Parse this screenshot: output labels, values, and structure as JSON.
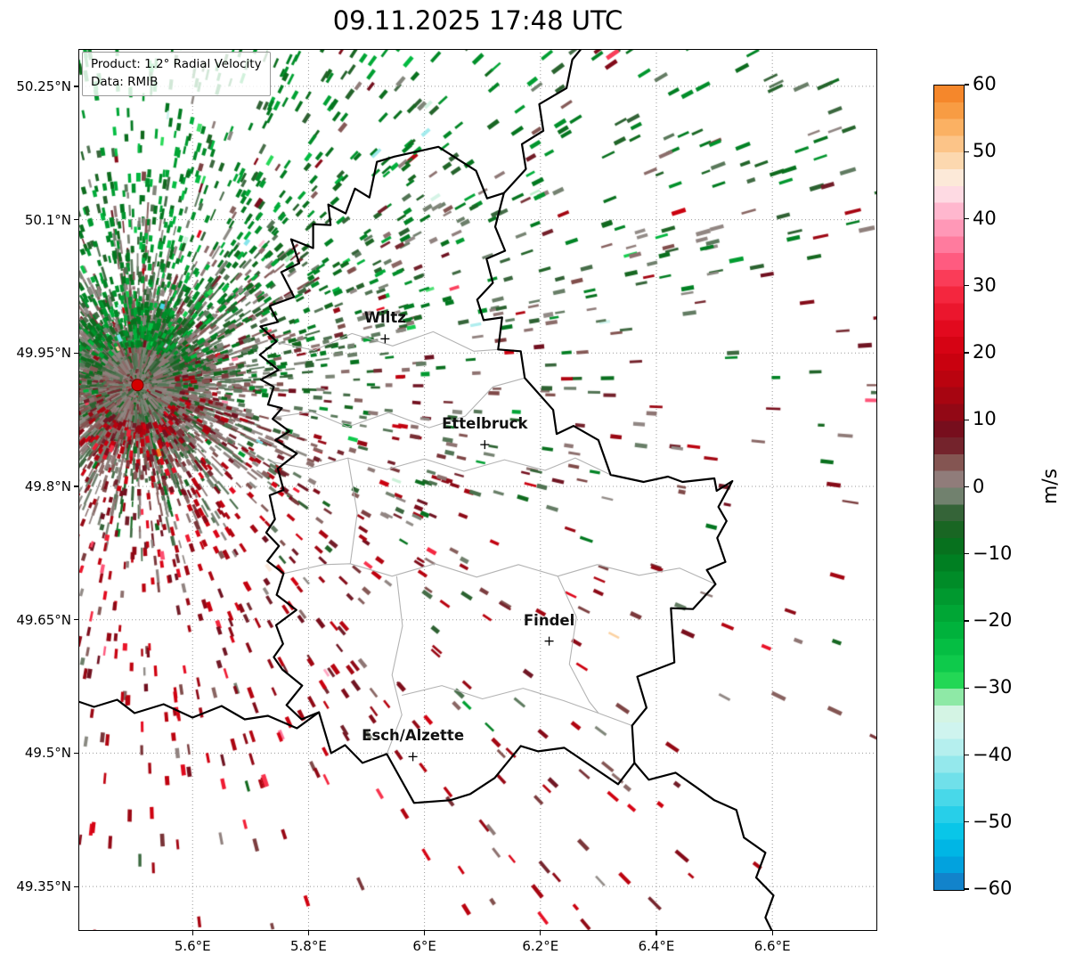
{
  "chart_data": {
    "type": "scatter",
    "title": "09.11.2025 17:48 UTC",
    "projection": "PlateCarree",
    "xlabel": "",
    "ylabel": "",
    "xlim": [
      5.403,
      6.781
    ],
    "ylim": [
      49.3,
      50.292
    ],
    "grid": true,
    "x_ticks": [
      {
        "v": 5.6,
        "label": "5.6°E"
      },
      {
        "v": 5.8,
        "label": "5.8°E"
      },
      {
        "v": 6.0,
        "label": "6°E"
      },
      {
        "v": 6.2,
        "label": "6.2°E"
      },
      {
        "v": 6.4,
        "label": "6.4°E"
      },
      {
        "v": 6.6,
        "label": "6.6°E"
      }
    ],
    "y_ticks": [
      {
        "v": 50.25,
        "label": "50.25°N"
      },
      {
        "v": 50.1,
        "label": "50.1°N"
      },
      {
        "v": 49.95,
        "label": "49.95°N"
      },
      {
        "v": 49.8,
        "label": "49.8°N"
      },
      {
        "v": 49.65,
        "label": "49.65°N"
      },
      {
        "v": 49.5,
        "label": "49.5°N"
      },
      {
        "v": 49.35,
        "label": "49.35°N"
      }
    ],
    "legend": {
      "product": "Product: 1.2° Radial Velocity",
      "source": "Data: RMIB"
    },
    "colorbar": {
      "label": "m/s",
      "min": -60,
      "max": 60,
      "step_band": 2.5,
      "ticks": [
        {
          "v": 60,
          "label": "60"
        },
        {
          "v": 50,
          "label": "50"
        },
        {
          "v": 40,
          "label": "40"
        },
        {
          "v": 30,
          "label": "30"
        },
        {
          "v": 20,
          "label": "20"
        },
        {
          "v": 10,
          "label": "10"
        },
        {
          "v": 0,
          "label": "0"
        },
        {
          "v": -10,
          "label": "−10"
        },
        {
          "v": -20,
          "label": "−20"
        },
        {
          "v": -30,
          "label": "−30"
        },
        {
          "v": -40,
          "label": "−40"
        },
        {
          "v": -50,
          "label": "−50"
        },
        {
          "v": -60,
          "label": "−60"
        }
      ],
      "stops": [
        [
          -60,
          "#1a73c2"
        ],
        [
          -56,
          "#00a5e0"
        ],
        [
          -52,
          "#00c3e8"
        ],
        [
          -47,
          "#3cd5e9"
        ],
        [
          -43,
          "#7ce3ea"
        ],
        [
          -39,
          "#b2eeee"
        ],
        [
          -35,
          "#dcf6f0"
        ],
        [
          -32,
          "#c8f0d4"
        ],
        [
          -30,
          "#2edd5a"
        ],
        [
          -26,
          "#0cc94a"
        ],
        [
          -22,
          "#00b63e"
        ],
        [
          -18,
          "#00a233"
        ],
        [
          -14,
          "#008d29"
        ],
        [
          -10,
          "#00781f"
        ],
        [
          -7,
          "#11681d"
        ],
        [
          -4,
          "#2f6133"
        ],
        [
          -2,
          "#5d7a5e"
        ],
        [
          0,
          "#928c88"
        ],
        [
          2,
          "#8e7371"
        ],
        [
          4,
          "#82514e"
        ],
        [
          6,
          "#75262e"
        ],
        [
          8,
          "#6e1120"
        ],
        [
          10,
          "#870a17"
        ],
        [
          13,
          "#a10612"
        ],
        [
          16,
          "#b9030f"
        ],
        [
          20,
          "#d0000f"
        ],
        [
          24,
          "#e30a1f"
        ],
        [
          28,
          "#f22037"
        ],
        [
          31,
          "#fa3954"
        ],
        [
          34,
          "#ff5e84"
        ],
        [
          37,
          "#ff84a7"
        ],
        [
          40,
          "#ffa7c3"
        ],
        [
          43,
          "#ffcedd"
        ],
        [
          45,
          "#fcedec"
        ],
        [
          47,
          "#fce6cc"
        ],
        [
          50,
          "#fcce9b"
        ],
        [
          53,
          "#fcb76d"
        ],
        [
          56,
          "#f89e45"
        ],
        [
          60,
          "#f47d1f"
        ]
      ]
    },
    "cities": [
      {
        "name": "Wiltz",
        "lon": 5.932,
        "lat": 49.966
      },
      {
        "name": "Ettelbruck",
        "lon": 6.104,
        "lat": 49.847
      },
      {
        "name": "Findel",
        "lon": 6.215,
        "lat": 49.626
      },
      {
        "name": "Esch/Alzette",
        "lon": 5.98,
        "lat": 49.496
      }
    ],
    "radar_site": {
      "lon": 5.505,
      "lat": 49.914,
      "color": "#d40000",
      "edge": "#7a0000"
    },
    "field_model": {
      "seed": 42,
      "description": "1.2° PPI radial-velocity bins around the radar site: negative velocities (greens, toward radar) dominate the northern sectors, positive velocities (dark reds, away) the southern sectors, with a dense near-zero (gray) ground-clutter disc and radial spokes at the radar, thinning with range",
      "mean_radial_wind_ms": 13.5,
      "noise_sigma_ms": 6.5,
      "clutter_count": 6000,
      "spoke_count": 300,
      "field_count": 7000,
      "far_count": 260
    }
  },
  "map_layers": {
    "grid_color": "#9a9a9a",
    "country_border_color": "#000000",
    "region_border_color": "#b3b3b3",
    "country_borders": {
      "luxembourg": [
        [
          5.948,
          50.171
        ],
        [
          6.024,
          50.182
        ],
        [
          6.089,
          50.155
        ],
        [
          6.108,
          50.124
        ],
        [
          6.137,
          50.13
        ],
        [
          6.122,
          50.092
        ],
        [
          6.139,
          50.065
        ],
        [
          6.107,
          50.056
        ],
        [
          6.118,
          50.029
        ],
        [
          6.091,
          50.01
        ],
        [
          6.102,
          49.987
        ],
        [
          6.134,
          49.99
        ],
        [
          6.127,
          49.954
        ],
        [
          6.166,
          49.952
        ],
        [
          6.173,
          49.922
        ],
        [
          6.222,
          49.886
        ],
        [
          6.228,
          49.859
        ],
        [
          6.257,
          49.868
        ],
        [
          6.3,
          49.852
        ],
        [
          6.321,
          49.813
        ],
        [
          6.378,
          49.805
        ],
        [
          6.42,
          49.811
        ],
        [
          6.445,
          49.805
        ],
        [
          6.5,
          49.809
        ],
        [
          6.504,
          49.795
        ],
        [
          6.531,
          49.806
        ],
        [
          6.507,
          49.777
        ],
        [
          6.521,
          49.761
        ],
        [
          6.505,
          49.742
        ],
        [
          6.519,
          49.715
        ],
        [
          6.487,
          49.706
        ],
        [
          6.502,
          49.69
        ],
        [
          6.463,
          49.662
        ],
        [
          6.425,
          49.663
        ],
        [
          6.431,
          49.602
        ],
        [
          6.367,
          49.586
        ],
        [
          6.383,
          49.551
        ],
        [
          6.358,
          49.531
        ],
        [
          6.362,
          49.489
        ],
        [
          6.334,
          49.465
        ],
        [
          6.241,
          49.506
        ],
        [
          6.196,
          49.502
        ],
        [
          6.166,
          49.508
        ],
        [
          6.121,
          49.472
        ],
        [
          6.079,
          49.454
        ],
        [
          6.044,
          49.447
        ],
        [
          5.982,
          49.444
        ],
        [
          5.935,
          49.499
        ],
        [
          5.893,
          49.489
        ],
        [
          5.863,
          49.509
        ],
        [
          5.839,
          49.5
        ],
        [
          5.818,
          49.546
        ],
        [
          5.788,
          49.538
        ],
        [
          5.762,
          49.554
        ],
        [
          5.789,
          49.576
        ],
        [
          5.755,
          49.594
        ],
        [
          5.74,
          49.608
        ],
        [
          5.756,
          49.623
        ],
        [
          5.744,
          49.644
        ],
        [
          5.779,
          49.661
        ],
        [
          5.745,
          49.678
        ],
        [
          5.757,
          49.702
        ],
        [
          5.729,
          49.716
        ],
        [
          5.749,
          49.733
        ],
        [
          5.727,
          49.748
        ],
        [
          5.742,
          49.763
        ],
        [
          5.733,
          49.79
        ],
        [
          5.757,
          49.796
        ],
        [
          5.747,
          49.82
        ],
        [
          5.78,
          49.837
        ],
        [
          5.743,
          49.852
        ],
        [
          5.767,
          49.862
        ],
        [
          5.738,
          49.876
        ],
        [
          5.754,
          49.888
        ],
        [
          5.73,
          49.892
        ],
        [
          5.74,
          49.912
        ],
        [
          5.718,
          49.92
        ],
        [
          5.748,
          49.931
        ],
        [
          5.716,
          49.948
        ],
        [
          5.745,
          49.963
        ],
        [
          5.717,
          49.98
        ],
        [
          5.747,
          49.985
        ],
        [
          5.733,
          50.003
        ],
        [
          5.775,
          50.013
        ],
        [
          5.753,
          50.041
        ],
        [
          5.784,
          50.051
        ],
        [
          5.77,
          50.078
        ],
        [
          5.808,
          50.068
        ],
        [
          5.808,
          50.095
        ],
        [
          5.838,
          50.094
        ],
        [
          5.834,
          50.117
        ],
        [
          5.864,
          50.107
        ],
        [
          5.88,
          50.135
        ],
        [
          5.905,
          50.125
        ],
        [
          5.918,
          50.165
        ],
        [
          5.948,
          50.171
        ]
      ],
      "belgium_germany": [
        [
          6.137,
          50.13
        ],
        [
          6.175,
          50.157
        ],
        [
          6.168,
          50.185
        ],
        [
          6.205,
          50.2
        ],
        [
          6.198,
          50.23
        ],
        [
          6.245,
          50.248
        ],
        [
          6.255,
          50.28
        ],
        [
          6.28,
          50.3
        ]
      ],
      "france_germany": [
        [
          6.362,
          49.489
        ],
        [
          6.387,
          49.47
        ],
        [
          6.433,
          49.478
        ],
        [
          6.468,
          49.462
        ],
        [
          6.5,
          49.447
        ],
        [
          6.538,
          49.436
        ],
        [
          6.551,
          49.405
        ],
        [
          6.588,
          49.388
        ],
        [
          6.572,
          49.36
        ],
        [
          6.602,
          49.34
        ],
        [
          6.588,
          49.315
        ],
        [
          6.607,
          49.29
        ]
      ],
      "belgium_france": [
        [
          5.818,
          49.546
        ],
        [
          5.78,
          49.528
        ],
        [
          5.73,
          49.542
        ],
        [
          5.69,
          49.538
        ],
        [
          5.65,
          49.553
        ],
        [
          5.6,
          49.54
        ],
        [
          5.55,
          49.555
        ],
        [
          5.5,
          49.545
        ],
        [
          5.47,
          49.56
        ],
        [
          5.43,
          49.552
        ],
        [
          5.403,
          49.558
        ]
      ]
    },
    "region_borders": [
      [
        [
          5.747,
          49.962
        ],
        [
          5.81,
          49.953
        ],
        [
          5.875,
          49.972
        ],
        [
          5.945,
          49.958
        ],
        [
          6.015,
          49.974
        ],
        [
          6.085,
          49.952
        ],
        [
          6.127,
          49.954
        ]
      ],
      [
        [
          5.742,
          49.878
        ],
        [
          5.805,
          49.884
        ],
        [
          5.868,
          49.867
        ],
        [
          5.938,
          49.883
        ],
        [
          6.008,
          49.866
        ],
        [
          6.07,
          49.879
        ]
      ],
      [
        [
          6.07,
          49.879
        ],
        [
          6.118,
          49.912
        ],
        [
          6.173,
          49.922
        ]
      ],
      [
        [
          5.733,
          49.828
        ],
        [
          5.8,
          49.82
        ],
        [
          5.868,
          49.832
        ],
        [
          5.935,
          49.819
        ],
        [
          6.0,
          49.831
        ],
        [
          6.068,
          49.817
        ],
        [
          6.138,
          49.83
        ],
        [
          6.208,
          49.818
        ],
        [
          6.26,
          49.832
        ],
        [
          6.321,
          49.813
        ]
      ],
      [
        [
          5.868,
          49.832
        ],
        [
          5.884,
          49.77
        ],
        [
          5.872,
          49.713
        ]
      ],
      [
        [
          5.757,
          49.702
        ],
        [
          5.826,
          49.712
        ],
        [
          5.872,
          49.713
        ],
        [
          5.944,
          49.699
        ],
        [
          6.018,
          49.713
        ],
        [
          6.09,
          49.698
        ],
        [
          6.162,
          49.712
        ],
        [
          6.23,
          49.699
        ],
        [
          6.298,
          49.712
        ],
        [
          6.37,
          49.7
        ],
        [
          6.44,
          49.708
        ],
        [
          6.502,
          49.69
        ]
      ],
      [
        [
          5.952,
          49.699
        ],
        [
          5.962,
          49.643
        ],
        [
          5.944,
          49.588
        ],
        [
          5.961,
          49.543
        ],
        [
          5.935,
          49.499
        ]
      ],
      [
        [
          5.961,
          49.565
        ],
        [
          6.03,
          49.576
        ],
        [
          6.1,
          49.561
        ],
        [
          6.17,
          49.573
        ],
        [
          6.24,
          49.559
        ],
        [
          6.3,
          49.545
        ],
        [
          6.358,
          49.531
        ]
      ],
      [
        [
          6.23,
          49.699
        ],
        [
          6.262,
          49.653
        ],
        [
          6.25,
          49.6
        ],
        [
          6.284,
          49.558
        ],
        [
          6.3,
          49.545
        ]
      ]
    ]
  }
}
